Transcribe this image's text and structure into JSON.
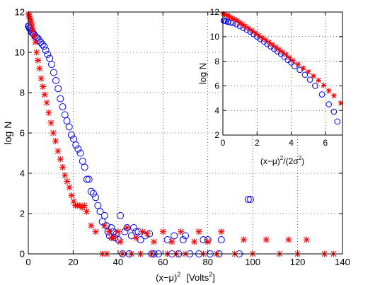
{
  "chart_data": [
    {
      "type": "scatter",
      "xlabel_main": "(x−μ)",
      "xlabel_sup": "2",
      "xlabel_unit": "[Volts",
      "xlabel_unit_sup": "2",
      "xlabel_unit_close": "]",
      "ylabel": "log N",
      "xlim": [
        0,
        140
      ],
      "ylim": [
        0,
        12
      ],
      "xticks": [
        0,
        20,
        40,
        60,
        80,
        100,
        120,
        140
      ],
      "yticks": [
        0,
        2,
        4,
        6,
        8,
        10,
        12
      ],
      "grid": true,
      "series": [
        {
          "marker": "circle",
          "color": "#0000ff",
          "x": [
            0.1,
            0.3,
            0.5,
            0.8,
            1.1,
            1.5,
            2.0,
            2.5,
            3.0,
            3.6,
            4.2,
            4.8,
            5.5,
            6.2,
            7.0,
            7.8,
            8.6,
            9.5,
            10.4,
            11.3,
            12.3,
            13.3,
            14.3,
            15.3,
            16.3,
            17.2,
            18.2,
            19.2,
            20.2,
            21.2,
            22.2,
            23.2,
            24.2,
            25.1,
            26.1,
            27.0,
            28.0,
            29.0,
            30.0,
            31.0,
            32.0,
            33.0,
            34.0,
            34.8,
            35.5,
            36.2,
            37.0,
            37.8,
            38.5,
            39.3,
            40.2,
            41.0,
            42.0,
            43.0,
            44.0,
            45.0,
            46.0,
            47.0,
            48.0,
            49.0,
            50.0,
            52.0,
            54.0,
            55.0,
            56.0,
            58.0,
            62.0,
            64.0,
            65.0,
            67.0,
            69.0,
            70.0,
            72.0,
            76.0,
            78.0,
            80.0,
            81.0,
            85.0,
            86.0,
            94.0,
            98.0,
            99.0
          ],
          "y": [
            11.3,
            11.3,
            11.2,
            11.2,
            11.1,
            11.0,
            10.95,
            10.9,
            10.8,
            10.75,
            10.7,
            10.6,
            10.5,
            10.4,
            10.3,
            10.1,
            9.9,
            9.7,
            9.4,
            9.0,
            8.6,
            8.2,
            7.7,
            7.3,
            6.9,
            6.6,
            6.3,
            5.9,
            5.7,
            5.4,
            5.2,
            5.0,
            4.6,
            4.3,
            3.7,
            3.7,
            3.1,
            3.0,
            2.8,
            2.4,
            2.1,
            1.6,
            1.9,
            1.4,
            1.1,
            0.9,
            1.3,
            1.1,
            0.8,
            1.0,
            0.7,
            1.9,
            0.0,
            1.1,
            1.3,
            0.0,
            0.9,
            1.3,
            1.1,
            1.1,
            0.7,
            0.9,
            1.0,
            0.0,
            0.0,
            0.0,
            0.7,
            0.0,
            0.9,
            0.0,
            0.7,
            0.9,
            0.0,
            0.0,
            0.7,
            0.7,
            0.0,
            0.0,
            0.7,
            0.0,
            2.7,
            2.7
          ]
        },
        {
          "marker": "asterisk",
          "color": "#ff0000",
          "x": [
            0.1,
            0.3,
            0.5,
            0.7,
            1.0,
            1.3,
            1.7,
            2.1,
            2.6,
            3.1,
            3.7,
            4.3,
            5.0,
            5.7,
            6.5,
            7.3,
            8.2,
            9.1,
            10.1,
            11.1,
            12.1,
            13.2,
            14.3,
            15.3,
            16.3,
            17.3,
            18.3,
            19.3,
            20.2,
            21.0,
            22.0,
            23.0,
            24.0,
            25.0,
            26.0,
            28.0,
            30.0,
            33.0,
            34.0,
            35.0,
            36.0,
            37.0,
            38.0,
            40.0,
            41.0,
            42.0,
            44.0,
            46.0,
            48.0,
            50.0,
            51.0,
            53.0,
            55.0,
            56.0,
            60.0,
            62.0,
            64.0,
            66.0,
            68.0,
            70.0,
            74.0,
            76.0,
            78.0,
            80.0,
            84.0,
            86.0,
            92.0,
            96.0,
            100.0,
            106.0,
            112.0,
            116.0,
            120.0,
            124.0,
            132.0,
            136.0
          ],
          "y": [
            11.9,
            11.8,
            11.8,
            11.7,
            11.6,
            11.5,
            11.3,
            11.1,
            10.8,
            10.5,
            10.0,
            9.6,
            9.2,
            8.7,
            8.3,
            7.9,
            7.5,
            7.0,
            6.5,
            6.0,
            5.6,
            5.1,
            4.7,
            4.3,
            3.9,
            3.6,
            3.3,
            2.9,
            2.6,
            2.4,
            2.4,
            2.4,
            2.3,
            2.4,
            2.1,
            1.4,
            1.1,
            0.0,
            1.4,
            0.0,
            1.1,
            0.8,
            0.8,
            1.1,
            0.6,
            0.0,
            1.3,
            0.0,
            0.8,
            0.0,
            1.1,
            1.0,
            0.0,
            0.6,
            1.1,
            0.0,
            0.6,
            0.0,
            1.1,
            0.0,
            0.6,
            1.1,
            0.0,
            0.6,
            0.0,
            1.1,
            0.0,
            0.7,
            0.0,
            0.7,
            0.0,
            0.7,
            0.0,
            0.7,
            0.0,
            0.0
          ]
        }
      ]
    },
    {
      "type": "scatter",
      "xlabel_main": "(x−μ)",
      "xlabel_sup": "2",
      "xlabel_div": "/(2σ",
      "xlabel_div_sup": "2",
      "xlabel_close": ")",
      "ylabel": "log N",
      "xlim": [
        0,
        7
      ],
      "ylim": [
        2,
        12
      ],
      "xticks": [
        0,
        2,
        4,
        6
      ],
      "yticks": [
        2,
        4,
        6,
        8,
        10,
        12
      ],
      "grid": true,
      "series": [
        {
          "marker": "circle",
          "color": "#0000ff",
          "x": [
            0.05,
            0.1,
            0.2,
            0.3,
            0.45,
            0.6,
            0.8,
            1.0,
            1.2,
            1.4,
            1.6,
            1.8,
            2.0,
            2.2,
            2.4,
            2.6,
            2.8,
            3.0,
            3.2,
            3.4,
            3.6,
            3.8,
            4.0,
            4.2,
            4.5,
            4.8,
            5.1,
            5.4,
            5.8,
            6.2,
            6.5,
            6.7
          ],
          "y": [
            11.3,
            11.3,
            11.25,
            11.2,
            11.15,
            11.1,
            11.0,
            10.85,
            10.7,
            10.55,
            10.4,
            10.2,
            10.0,
            9.8,
            9.6,
            9.4,
            9.2,
            9.0,
            8.8,
            8.6,
            8.35,
            8.1,
            7.9,
            7.6,
            7.3,
            6.9,
            6.5,
            6.0,
            5.3,
            4.5,
            3.9,
            3.1
          ]
        },
        {
          "marker": "asterisk",
          "color": "#ff0000",
          "x": [
            0.02,
            0.1,
            0.2,
            0.3,
            0.4,
            0.55,
            0.7,
            0.85,
            1.0,
            1.15,
            1.3,
            1.5,
            1.7,
            1.9,
            2.1,
            2.3,
            2.5,
            2.7,
            2.9,
            3.1,
            3.3,
            3.5,
            3.7,
            3.9,
            4.1,
            4.4,
            4.7,
            5.0,
            5.3,
            5.6,
            5.9,
            6.2,
            6.5,
            6.9
          ],
          "y": [
            11.85,
            11.8,
            11.75,
            11.7,
            11.6,
            11.5,
            11.4,
            11.3,
            11.15,
            11.0,
            10.85,
            10.7,
            10.5,
            10.3,
            10.1,
            9.9,
            9.75,
            9.55,
            9.35,
            9.15,
            8.95,
            8.75,
            8.55,
            8.3,
            8.05,
            7.75,
            7.45,
            7.15,
            6.8,
            6.45,
            6.05,
            5.6,
            5.2,
            4.6
          ]
        }
      ]
    }
  ]
}
